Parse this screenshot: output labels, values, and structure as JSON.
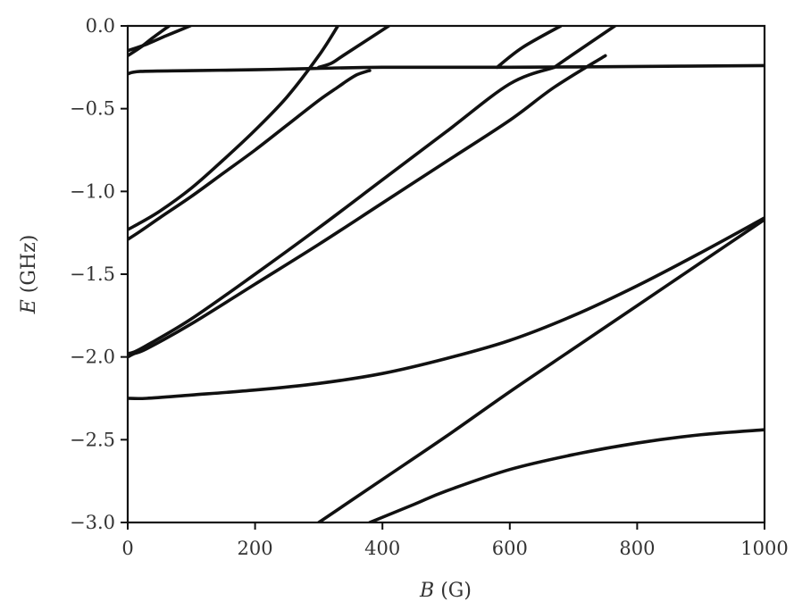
{
  "chart_data": {
    "type": "line",
    "title": "",
    "xlabel": {
      "symbol": "B",
      "unit": "(G)"
    },
    "ylabel": {
      "symbol": "E",
      "unit": "(GHz)"
    },
    "xlim": [
      0,
      1000
    ],
    "ylim": [
      -3.0,
      0.0
    ],
    "xticks": [
      0,
      200,
      400,
      600,
      800,
      1000
    ],
    "yticks": [
      0.0,
      -0.5,
      -1.0,
      -1.5,
      -2.0,
      -2.5,
      -3.0
    ],
    "xtick_labels": [
      "0",
      "200",
      "400",
      "600",
      "800",
      "1000"
    ],
    "ytick_labels": [
      "0.0",
      "−0.5",
      "−1.0",
      "−1.5",
      "−2.0",
      "−2.5",
      "−3.0"
    ],
    "grid": false,
    "line_color": "#111111",
    "series": [
      {
        "x": [
          0,
          30,
          60,
          98
        ],
        "y": [
          -0.15,
          -0.11,
          -0.06,
          0.0
        ]
      },
      {
        "x": [
          0,
          20,
          40,
          65
        ],
        "y": [
          -0.18,
          -0.13,
          -0.07,
          0.0
        ]
      },
      {
        "x": [
          0,
          20,
          100,
          200,
          260,
          400,
          600,
          800,
          1000
        ],
        "y": [
          -0.29,
          -0.275,
          -0.27,
          -0.265,
          -0.26,
          -0.25,
          -0.25,
          -0.245,
          -0.24
        ]
      },
      {
        "x": [
          300,
          320,
          340,
          410
        ],
        "y": [
          -0.25,
          -0.225,
          -0.175,
          0.0
        ]
      },
      {
        "x": [
          0,
          10,
          50,
          100,
          150,
          200,
          250,
          300,
          330
        ],
        "y": [
          -1.23,
          -1.21,
          -1.12,
          -0.98,
          -0.81,
          -0.63,
          -0.43,
          -0.18,
          0.0
        ]
      },
      {
        "x": [
          0,
          20,
          50,
          100,
          150,
          200,
          250,
          300,
          330,
          345,
          360,
          375,
          380
        ],
        "y": [
          -1.29,
          -1.24,
          -1.16,
          -1.03,
          -0.89,
          -0.75,
          -0.6,
          -0.45,
          -0.37,
          -0.33,
          -0.295,
          -0.275,
          -0.27
        ]
      },
      {
        "x": [
          0,
          10,
          30,
          100,
          200,
          300,
          400,
          500,
          600,
          670
        ],
        "y": [
          -1.98,
          -1.97,
          -1.93,
          -1.77,
          -1.5,
          -1.22,
          -0.93,
          -0.64,
          -0.35,
          -0.25
        ]
      },
      {
        "x": [
          0,
          10,
          30,
          100,
          200,
          300,
          400,
          500,
          600,
          670,
          750
        ],
        "y": [
          -2.0,
          -1.98,
          -1.95,
          -1.8,
          -1.56,
          -1.32,
          -1.07,
          -0.82,
          -0.57,
          -0.37,
          -0.18
        ]
      },
      {
        "x": [
          580,
          620,
          680
        ],
        "y": [
          -0.25,
          -0.13,
          0.0
        ]
      },
      {
        "x": [
          670,
          700,
          765
        ],
        "y": [
          -0.25,
          -0.17,
          0.0
        ]
      },
      {
        "x": [
          0,
          30,
          100,
          200,
          300,
          400,
          500,
          600,
          700,
          800,
          900,
          1000
        ],
        "y": [
          -2.25,
          -2.25,
          -2.23,
          -2.2,
          -2.16,
          -2.1,
          -2.01,
          -1.9,
          -1.75,
          -1.57,
          -1.37,
          -1.16
        ]
      },
      {
        "x": [
          300,
          400,
          500,
          600,
          700,
          800,
          900,
          1000
        ],
        "y": [
          -3.0,
          -2.74,
          -2.48,
          -2.21,
          -1.95,
          -1.69,
          -1.43,
          -1.17
        ]
      },
      {
        "x": [
          380,
          450,
          500,
          600,
          700,
          800,
          900,
          1000
        ],
        "y": [
          -3.0,
          -2.89,
          -2.81,
          -2.68,
          -2.59,
          -2.52,
          -2.47,
          -2.44
        ]
      }
    ]
  }
}
